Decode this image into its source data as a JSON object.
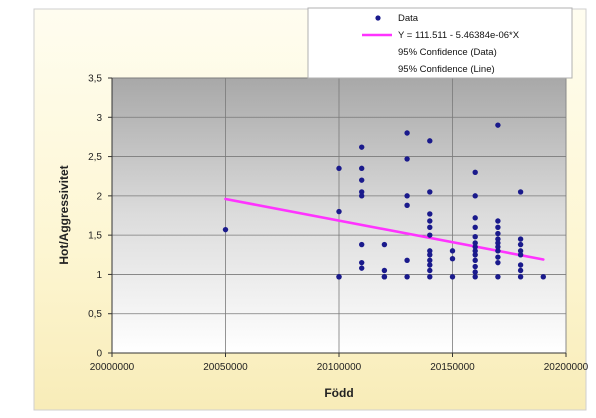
{
  "chart_data": {
    "type": "scatter",
    "xlabel": "Född",
    "ylabel": "Hot/Aggressivitet",
    "xlim": [
      20000000,
      20200000
    ],
    "ylim": [
      0,
      3.5
    ],
    "x_ticks": [
      20000000,
      20050000,
      20100000,
      20150000,
      20200000
    ],
    "y_ticks": [
      0,
      0.5,
      1,
      1.5,
      2,
      2.5,
      3,
      3.5
    ],
    "x_tick_labels": [
      "20000000",
      "20050000",
      "20100000",
      "20150000",
      "20200000"
    ],
    "y_tick_labels": [
      "0",
      "0,5",
      "1",
      "1,5",
      "2",
      "2,5",
      "3",
      "3,5"
    ],
    "grid": true,
    "legend_position": "top-right",
    "legend": [
      {
        "label": "Data",
        "marker": "dot",
        "color": "#1a1a8c"
      },
      {
        "label": "Y = 111.511 - 5.46384e-06*X",
        "marker": "line",
        "color": "#ff33ff"
      },
      {
        "label": "95% Confidence (Data)",
        "marker": "none",
        "color": ""
      },
      {
        "label": "95% Confidence (Line)",
        "marker": "none",
        "color": ""
      }
    ],
    "series": [
      {
        "name": "Data",
        "type": "scatter",
        "color": "#1a1a8c",
        "points": [
          [
            20050000,
            1.57
          ],
          [
            20100000,
            2.35
          ],
          [
            20100000,
            1.8
          ],
          [
            20100000,
            0.97
          ],
          [
            20100000,
            0.97
          ],
          [
            20110000,
            2.62
          ],
          [
            20110000,
            2.35
          ],
          [
            20110000,
            2.2
          ],
          [
            20110000,
            2.05
          ],
          [
            20110000,
            2.0
          ],
          [
            20110000,
            1.38
          ],
          [
            20110000,
            1.15
          ],
          [
            20110000,
            1.08
          ],
          [
            20120000,
            1.38
          ],
          [
            20120000,
            1.05
          ],
          [
            20120000,
            0.97
          ],
          [
            20120000,
            0.97
          ],
          [
            20130000,
            2.8
          ],
          [
            20130000,
            2.47
          ],
          [
            20130000,
            2.0
          ],
          [
            20130000,
            1.88
          ],
          [
            20130000,
            1.18
          ],
          [
            20130000,
            0.97
          ],
          [
            20140000,
            2.7
          ],
          [
            20140000,
            2.05
          ],
          [
            20140000,
            1.77
          ],
          [
            20140000,
            1.68
          ],
          [
            20140000,
            1.6
          ],
          [
            20140000,
            1.5
          ],
          [
            20140000,
            1.3
          ],
          [
            20140000,
            1.25
          ],
          [
            20140000,
            1.18
          ],
          [
            20140000,
            1.12
          ],
          [
            20140000,
            1.05
          ],
          [
            20140000,
            0.97
          ],
          [
            20150000,
            1.3
          ],
          [
            20150000,
            1.2
          ],
          [
            20150000,
            0.97
          ],
          [
            20160000,
            2.3
          ],
          [
            20160000,
            2.0
          ],
          [
            20160000,
            1.72
          ],
          [
            20160000,
            1.6
          ],
          [
            20160000,
            1.48
          ],
          [
            20160000,
            1.4
          ],
          [
            20160000,
            1.35
          ],
          [
            20160000,
            1.3
          ],
          [
            20160000,
            1.25
          ],
          [
            20160000,
            1.18
          ],
          [
            20160000,
            1.1
          ],
          [
            20160000,
            1.03
          ],
          [
            20160000,
            0.97
          ],
          [
            20170000,
            2.9
          ],
          [
            20170000,
            1.68
          ],
          [
            20170000,
            1.6
          ],
          [
            20170000,
            1.52
          ],
          [
            20170000,
            1.45
          ],
          [
            20170000,
            1.4
          ],
          [
            20170000,
            1.35
          ],
          [
            20170000,
            1.3
          ],
          [
            20170000,
            1.22
          ],
          [
            20170000,
            1.15
          ],
          [
            20170000,
            0.97
          ],
          [
            20180000,
            2.05
          ],
          [
            20180000,
            1.45
          ],
          [
            20180000,
            1.38
          ],
          [
            20180000,
            1.3
          ],
          [
            20180000,
            1.25
          ],
          [
            20180000,
            1.12
          ],
          [
            20180000,
            1.05
          ],
          [
            20180000,
            0.97
          ],
          [
            20190000,
            0.97
          ]
        ]
      },
      {
        "name": "Y = 111.511 - 5.46384e-06*X",
        "type": "line",
        "color": "#ff33ff",
        "x": [
          20050000,
          20190000
        ],
        "y": [
          1.96,
          1.19
        ]
      }
    ]
  }
}
